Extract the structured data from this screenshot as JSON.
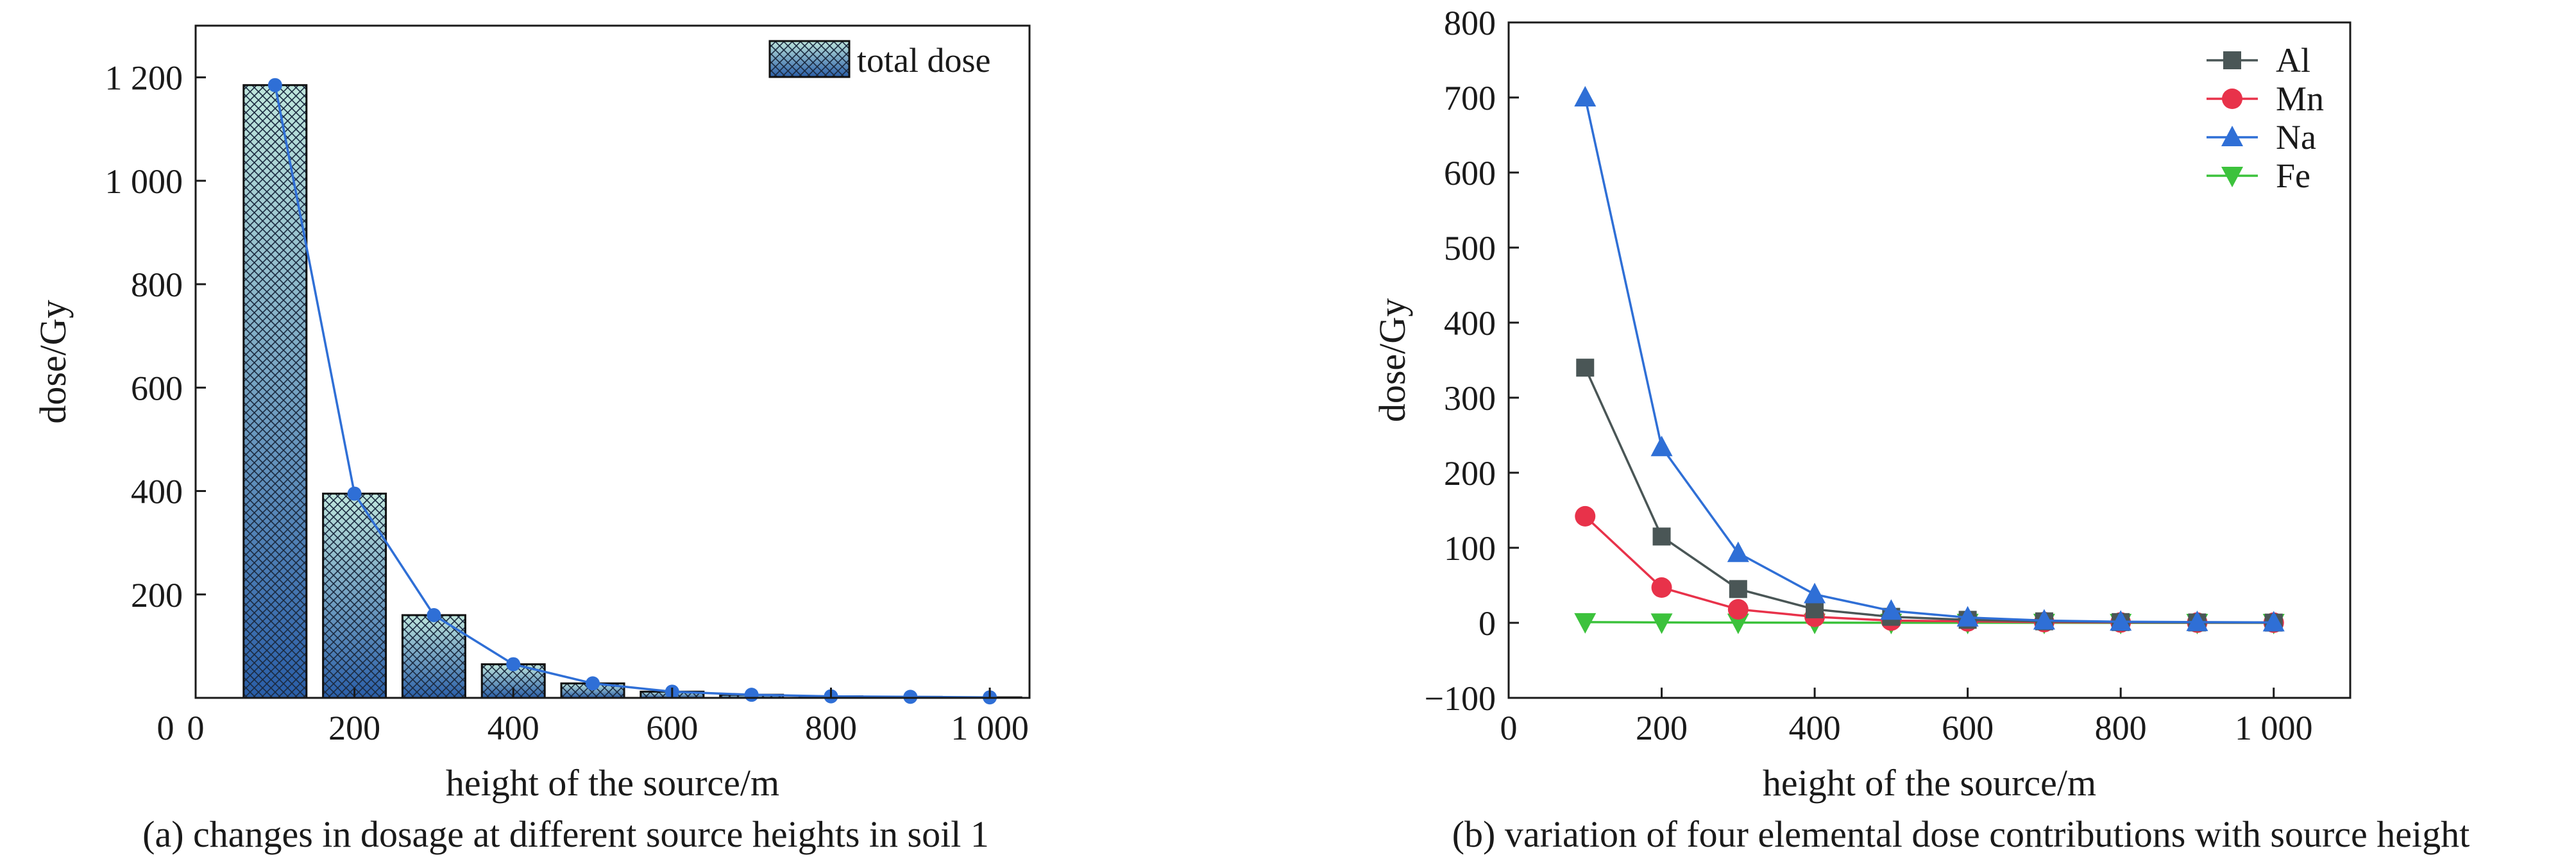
{
  "chart_data": [
    {
      "id": "a",
      "type": "bar",
      "caption": "(a) changes in dosage at different source heights in soil 1",
      "xlabel": "height of the source/m",
      "ylabel": "dose/Gy",
      "x": [
        100,
        200,
        300,
        400,
        500,
        600,
        700,
        800,
        900,
        1000
      ],
      "xlim": [
        0,
        1050
      ],
      "ylim": [
        0,
        1300
      ],
      "xticks": [
        0,
        200,
        400,
        600,
        800,
        1000
      ],
      "xtick_labels": [
        "0",
        "200",
        "400",
        "600",
        "800",
        "1 000"
      ],
      "yticks": [
        200,
        400,
        600,
        800,
        1000,
        1200
      ],
      "ytick_labels": [
        "200",
        "400",
        "600",
        "800",
        "1 000",
        "1 200"
      ],
      "legend_position": "top-right",
      "series": [
        {
          "name": "total dose",
          "values": [
            1185,
            395,
            160,
            65,
            28,
            12,
            6,
            3,
            2,
            1
          ]
        }
      ],
      "overlay_line": true,
      "colors": {
        "line": "#2f6fd6",
        "bar_dark": "#2a5ea8",
        "bar_light": "#bfe6dc"
      }
    },
    {
      "id": "b",
      "type": "line",
      "caption": "(b) variation of four elemental dose contributions with source height",
      "xlabel": "height of the source/m",
      "ylabel": "dose/Gy",
      "x": [
        100,
        200,
        300,
        400,
        500,
        600,
        700,
        800,
        900,
        1000
      ],
      "xlim": [
        0,
        1100
      ],
      "ylim": [
        -100,
        800
      ],
      "xticks": [
        0,
        200,
        400,
        600,
        800,
        1000
      ],
      "xtick_labels": [
        "0",
        "200",
        "400",
        "600",
        "800",
        "1 000"
      ],
      "yticks": [
        -100,
        0,
        100,
        200,
        300,
        400,
        500,
        600,
        700,
        800
      ],
      "ytick_labels": [
        "−100",
        "0",
        "100",
        "200",
        "300",
        "400",
        "500",
        "600",
        "700",
        "800"
      ],
      "legend_position": "top-right",
      "series": [
        {
          "name": "Al",
          "marker": "square",
          "color": "#4a5656",
          "values": [
            340,
            115,
            45,
            18,
            8,
            4,
            2,
            1,
            0.5,
            0.3
          ]
        },
        {
          "name": "Mn",
          "marker": "circle",
          "color": "#e8324a",
          "values": [
            142,
            47,
            18,
            8,
            3,
            2,
            1,
            0.5,
            0.3,
            0.2
          ]
        },
        {
          "name": "Na",
          "marker": "triangle-up",
          "color": "#2f6fd6",
          "values": [
            700,
            234,
            93,
            38,
            16,
            7,
            3,
            1.5,
            1,
            0.5
          ]
        },
        {
          "name": "Fe",
          "marker": "triangle-down",
          "color": "#3cc23c",
          "values": [
            1,
            0.5,
            0.3,
            0.2,
            0.1,
            0.1,
            0.1,
            0,
            0,
            0
          ]
        }
      ]
    }
  ]
}
